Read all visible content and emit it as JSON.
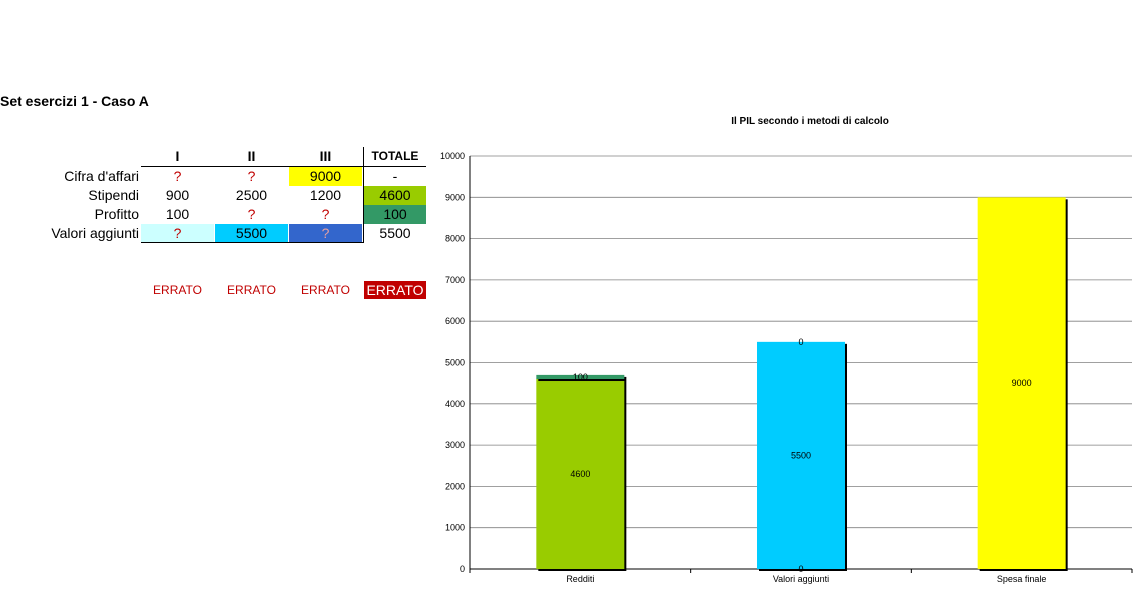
{
  "sheet": {
    "title": "Set esercizi 1 - Caso A"
  },
  "table": {
    "headers": [
      "I",
      "II",
      "III",
      "TOTALE"
    ],
    "rows": [
      {
        "label": "Cifra d'affari",
        "cells": [
          "?",
          "?",
          "9000",
          "-"
        ]
      },
      {
        "label": "Stipendi",
        "cells": [
          "900",
          "2500",
          "1200",
          "4600"
        ]
      },
      {
        "label": "Profitto",
        "cells": [
          "100",
          "?",
          "?",
          "100"
        ]
      },
      {
        "label": "Valori aggiunti",
        "cells": [
          "?",
          "5500",
          "?",
          "5500"
        ]
      }
    ],
    "status": [
      "ERRATO",
      "ERRATO",
      "ERRATO",
      "ERRATO"
    ],
    "colors": {
      "yellow": "#ffff00",
      "green_total": "#99cc00",
      "dark_green_total": "#339966",
      "light_cyan": "#ccffff",
      "cyan": "#00ccff",
      "blue": "#3366cc",
      "error_red": "#c00000"
    }
  },
  "chart_data": {
    "type": "bar",
    "title": "Il PIL secondo i metodi di calcolo",
    "categories": [
      "Redditi",
      "Valori aggiunti",
      "Spesa finale"
    ],
    "stacked": true,
    "series": [
      {
        "values": [
          4600,
          5500,
          9000
        ],
        "labels": [
          "4600",
          "5500",
          "9000"
        ],
        "colors": [
          "#99cc00",
          "#00ccff",
          "#ffff00"
        ]
      },
      {
        "values": [
          100,
          0,
          0
        ],
        "labels": [
          "100",
          "0",
          ""
        ],
        "colors": [
          "#339966",
          "#00ccff",
          "#ffff00"
        ]
      }
    ],
    "yticks": [
      "0",
      "1000",
      "2000",
      "3000",
      "4000",
      "5000",
      "6000",
      "7000",
      "8000",
      "9000",
      "10000"
    ],
    "ylim": [
      0,
      10000
    ],
    "grid": true,
    "legend": "none"
  }
}
